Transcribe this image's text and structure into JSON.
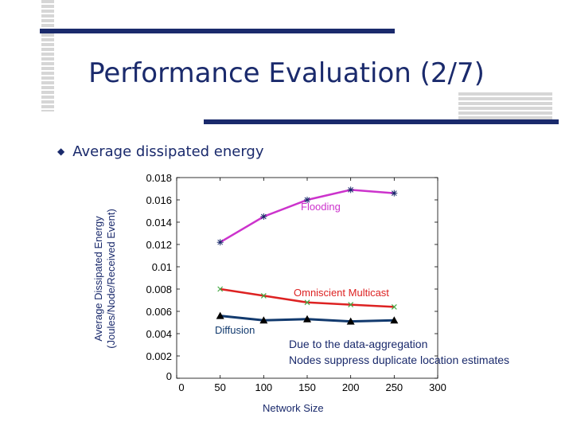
{
  "slide": {
    "title": "Performance Evaluation (2/7)",
    "bullet": "Average dissipated energy",
    "note_line1": "Due to the data-aggregation",
    "note_line2": "Nodes suppress duplicate location estimates"
  },
  "colors": {
    "theme": "#1a2a6c",
    "flooding": "#cc33cc",
    "omniscient": "#dd2222",
    "diffusion": "#123a6e",
    "omniscient_marker": "#44aa44"
  },
  "chart_data": {
    "type": "line",
    "xlabel": "Network Size",
    "ylabel_line1": "Average Dissipated Energy",
    "ylabel_line2": "(Joules/Node/Received Event)",
    "xlim": [
      0,
      300
    ],
    "ylim": [
      0,
      0.018
    ],
    "xticks": [
      "0",
      "50",
      "100",
      "150",
      "200",
      "250",
      "300"
    ],
    "yticks": [
      "0",
      "0.002",
      "0.004",
      "0.006",
      "0.008",
      "0.01",
      "0.012",
      "0.014",
      "0.016",
      "0.018"
    ],
    "grid": false,
    "x": [
      50,
      100,
      150,
      200,
      250
    ],
    "series": [
      {
        "name": "Flooding",
        "values": [
          0.0122,
          0.0145,
          0.016,
          0.0169,
          0.0166
        ],
        "marker": "star"
      },
      {
        "name": "Omniscient Multicast",
        "values": [
          0.008,
          0.0074,
          0.0068,
          0.0066,
          0.0064
        ],
        "marker": "x"
      },
      {
        "name": "Diffusion",
        "values": [
          0.0056,
          0.0052,
          0.0053,
          0.0051,
          0.0052
        ],
        "marker": "triangle"
      }
    ]
  }
}
